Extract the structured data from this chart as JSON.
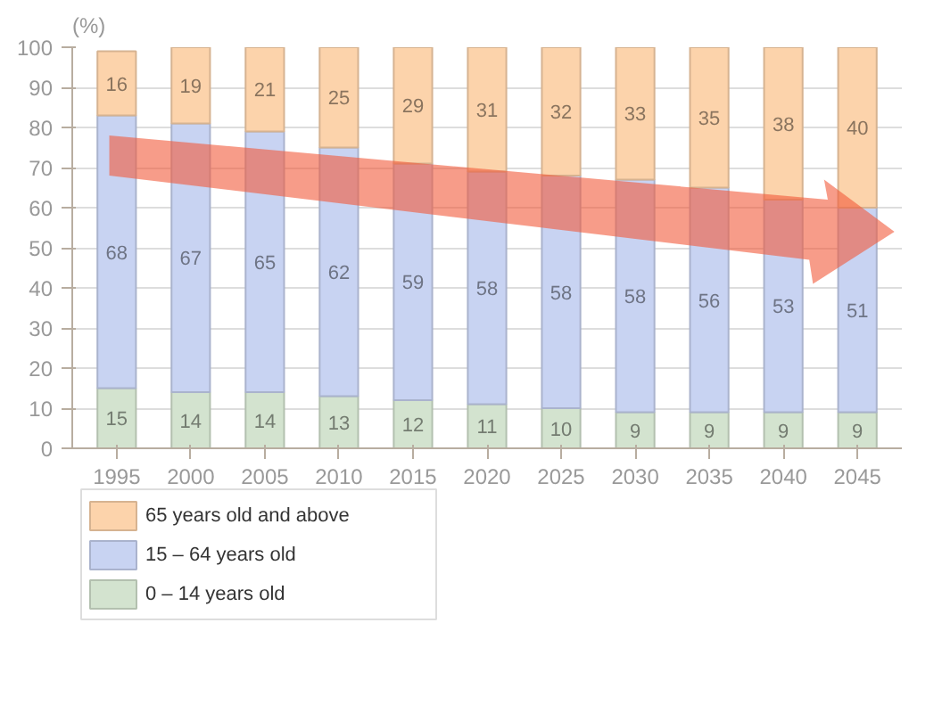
{
  "chart_data": {
    "type": "bar",
    "stacked": true,
    "ylabel": "(%)",
    "categories": [
      "1995",
      "2000",
      "2005",
      "2010",
      "2015",
      "2020",
      "2025",
      "2030",
      "2035",
      "2040",
      "2045"
    ],
    "series": [
      {
        "name": "0 – 14 years old",
        "color": "#d3e3cf",
        "values": [
          15,
          14,
          14,
          13,
          12,
          11,
          10,
          9,
          9,
          9,
          9
        ]
      },
      {
        "name": "15 – 64 years old",
        "color": "#c8d3f2",
        "values": [
          68,
          67,
          65,
          62,
          59,
          58,
          58,
          58,
          56,
          53,
          51
        ]
      },
      {
        "name": "65 years old and above",
        "color": "#fcd3ab",
        "values": [
          16,
          19,
          21,
          25,
          29,
          31,
          32,
          33,
          35,
          38,
          40
        ]
      }
    ],
    "ylim": [
      0,
      100
    ],
    "yticks": [
      0,
      10,
      20,
      30,
      40,
      50,
      60,
      70,
      80,
      90,
      100
    ],
    "grid": "y",
    "legend": "bottom left",
    "data_labels": true
  }
}
